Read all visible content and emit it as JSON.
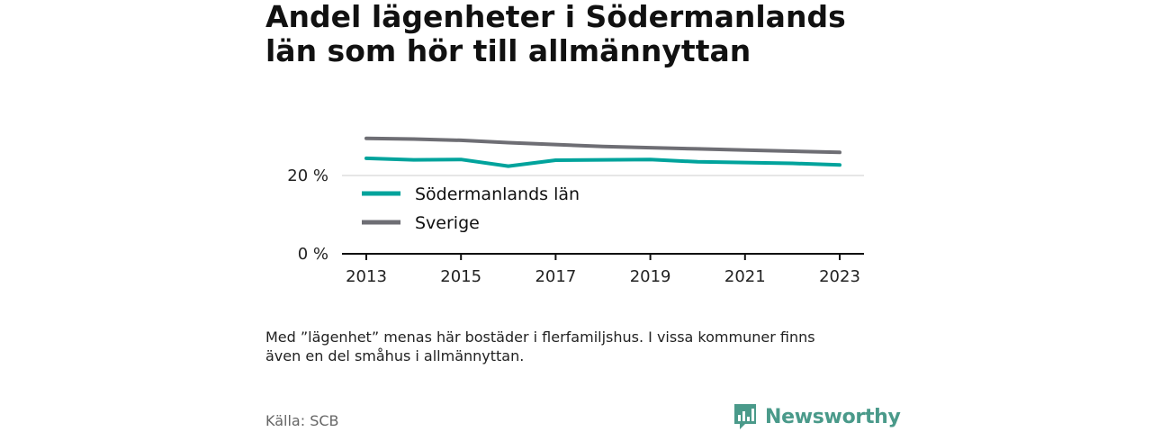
{
  "title_lines": [
    "Andel lägenheter i Södermanlands",
    "län som hör till allmännyttan"
  ],
  "note_lines": [
    "Med ”lägenhet” menas här bostäder i flerfamiljshus. I vissa kommuner finns",
    "även en del småhus i allmännyttan."
  ],
  "source": "Källa: SCB",
  "brand": {
    "name": "Newsworthy",
    "icon": "bar-chart-logo-icon",
    "color": "#4a9a8a"
  },
  "chart_data": {
    "type": "line",
    "x": [
      2013,
      2014,
      2015,
      2016,
      2017,
      2018,
      2019,
      2020,
      2021,
      2022,
      2023
    ],
    "x_ticks": [
      "2013",
      "2015",
      "2017",
      "2019",
      "2021",
      "2023"
    ],
    "y_ticks": [
      {
        "value": 0,
        "label": "0 %"
      },
      {
        "value": 20,
        "label": "20 %"
      }
    ],
    "ylim": [
      0,
      30
    ],
    "grid": true,
    "legend_position": "inside-bottom-left",
    "series": [
      {
        "name": "Södermanlands län",
        "color": "#00a39c",
        "values": [
          24.4,
          24.0,
          24.1,
          22.4,
          23.9,
          24.0,
          24.1,
          23.5,
          23.3,
          23.1,
          22.7
        ]
      },
      {
        "name": "Sverige",
        "color": "#6e6e74",
        "values": [
          29.5,
          29.3,
          29.0,
          28.4,
          27.9,
          27.4,
          27.1,
          26.8,
          26.5,
          26.2,
          25.9
        ]
      }
    ]
  }
}
